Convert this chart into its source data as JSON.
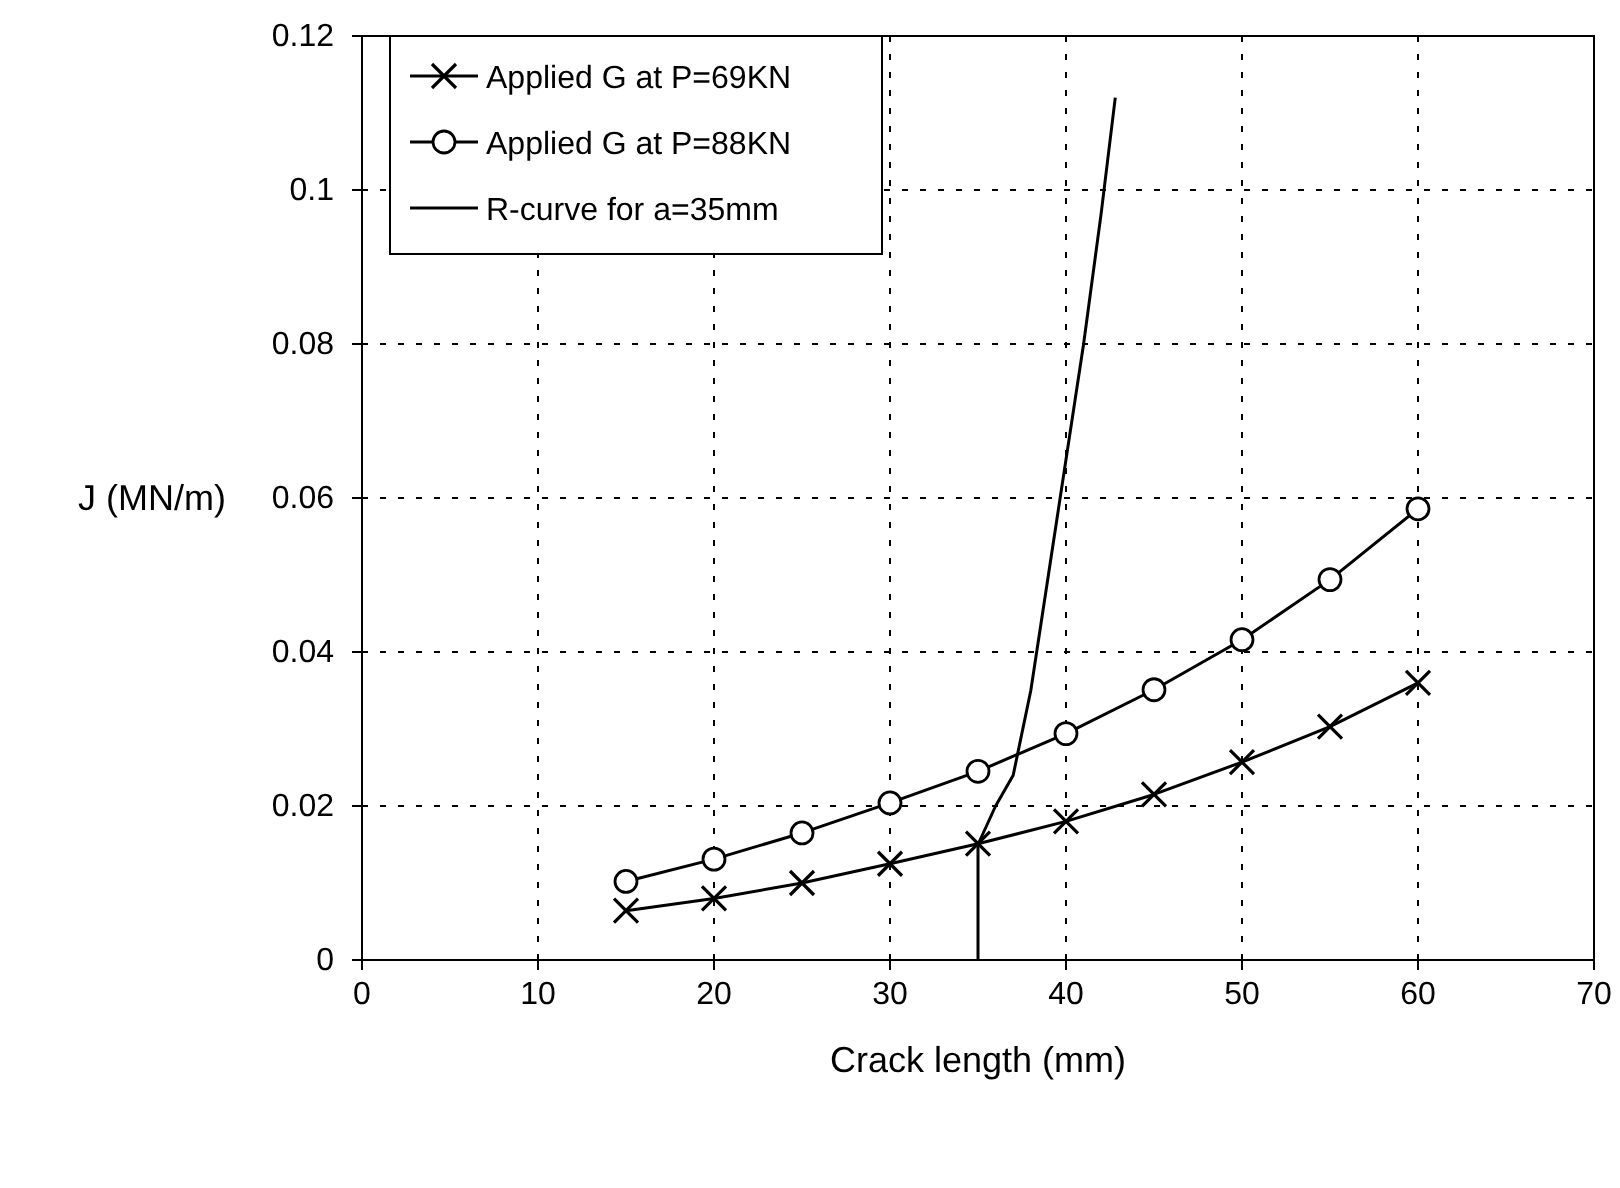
{
  "chart_data": {
    "type": "line",
    "xlabel": "Crack length (mm)",
    "ylabel": "J (MN/m)",
    "xlim": [
      0,
      70
    ],
    "xticks": [
      0,
      10,
      20,
      30,
      40,
      50,
      60,
      70
    ],
    "ylim": [
      0,
      0.12
    ],
    "yticks": [
      0,
      0.02,
      0.04,
      0.06,
      0.08,
      0.1,
      0.12
    ],
    "grid": true,
    "legend": "top left",
    "line_style": "solid",
    "series": [
      {
        "name": "Applied G at P=69KN",
        "color": "#000000",
        "marker": "cross",
        "x": [
          15,
          20,
          25,
          30,
          35,
          40,
          45,
          50,
          55,
          60
        ],
        "values": [
          0.0064,
          0.008,
          0.01,
          0.0125,
          0.0151,
          0.018,
          0.0215,
          0.0257,
          0.0303,
          0.036
        ]
      },
      {
        "name": "Applied G at P=88KN",
        "color": "#000000",
        "marker": "circle",
        "x": [
          15,
          20,
          25,
          30,
          35,
          40,
          45,
          50,
          55,
          60
        ],
        "values": [
          0.0102,
          0.0131,
          0.0165,
          0.0204,
          0.0245,
          0.0294,
          0.0351,
          0.0416,
          0.0494,
          0.0586
        ]
      },
      {
        "name": "R-curve for a=35mm",
        "color": "#000000",
        "marker": "none",
        "x": [
          35,
          35,
          36,
          37,
          38,
          39,
          40,
          41,
          42,
          42.8
        ],
        "values": [
          0,
          0.015,
          0.02,
          0.024,
          0.035,
          0.05,
          0.065,
          0.08,
          0.097,
          0.112
        ]
      }
    ]
  }
}
